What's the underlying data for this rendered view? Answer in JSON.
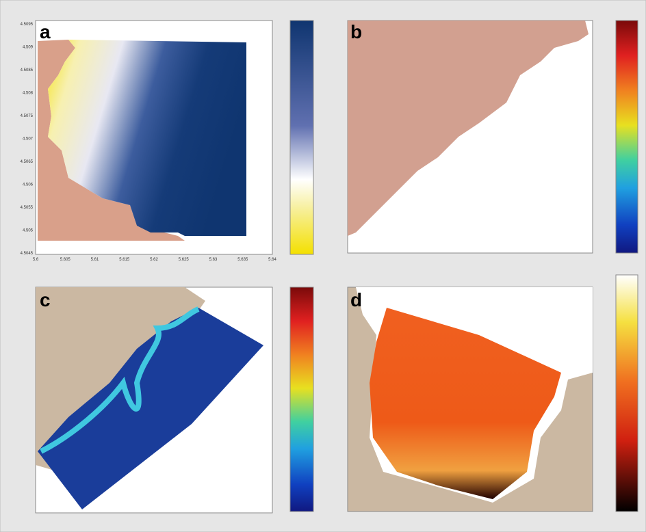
{
  "panels": [
    {
      "label": "a",
      "x_ticks": [
        "5.6",
        "5.605",
        "5.61",
        "5.615",
        "5.62",
        "5.625",
        "5.63",
        "5.635",
        "5.64"
      ],
      "y_ticks": [
        "4.5095",
        "4.509",
        "4.5085",
        "4.508",
        "4.5075",
        "4.507",
        "4.5065",
        "4.506",
        "4.5055",
        "4.505",
        "4.5045"
      ]
    },
    {
      "label": "b"
    },
    {
      "label": "c"
    },
    {
      "label": "d"
    }
  ]
}
